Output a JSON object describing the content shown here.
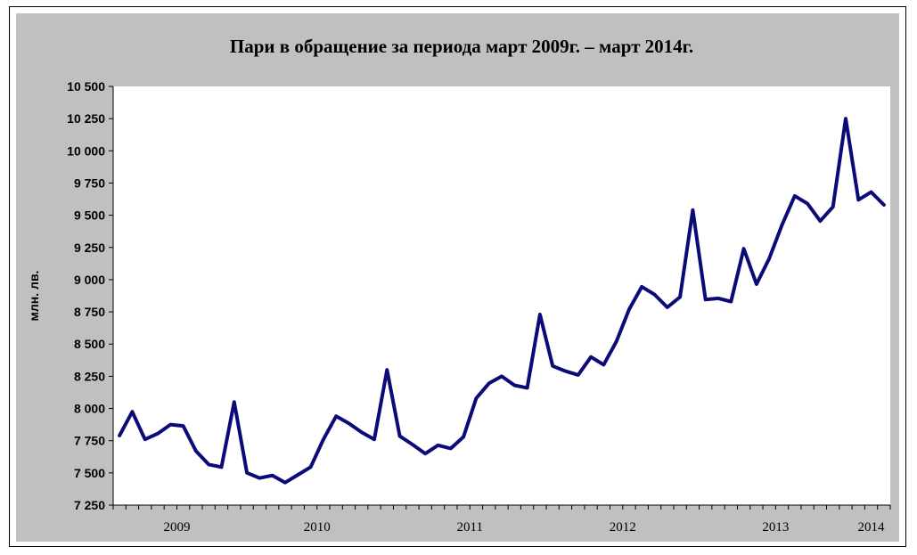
{
  "chart_data": {
    "type": "line",
    "title": "Пари в обращение за периода март 2009г. – март 2014г.",
    "xlabel": "",
    "ylabel": "млн. лв.",
    "ylim": [
      7250,
      10500
    ],
    "yticks": [
      7250,
      7500,
      7750,
      8000,
      8250,
      8500,
      8750,
      9000,
      9250,
      9500,
      9750,
      10000,
      10250,
      10500
    ],
    "ytick_labels": [
      "7 250",
      "7 500",
      "7 750",
      "8 000",
      "8 250",
      "8 500",
      "8 750",
      "9 000",
      "9 250",
      "9 500",
      "9 750",
      "10 000",
      "10 250",
      "10 500"
    ],
    "x_start": "2009-03",
    "year_labels": [
      "2009",
      "2010",
      "2011",
      "2012",
      "2013",
      "2014"
    ],
    "grid": false,
    "legend": "none",
    "line_color": "#0a0a78",
    "plot_bg": "#ffffff",
    "frame_bg": "#c0c0c0",
    "series": [
      {
        "values": [
          7790,
          7975,
          7760,
          7805,
          7875,
          7865,
          7670,
          7565,
          7545,
          8050,
          7500,
          7460,
          7480,
          7425,
          7485,
          7545,
          7760,
          7940,
          7885,
          7815,
          7760,
          8300,
          7785,
          7720,
          7650,
          7715,
          7690,
          7780,
          8080,
          8195,
          8250,
          8180,
          8160,
          8730,
          8330,
          8290,
          8260,
          8400,
          8340,
          8520,
          8770,
          8945,
          8885,
          8785,
          8865,
          9540,
          8845,
          8855,
          8830,
          9240,
          8965,
          9165,
          9425,
          9650,
          9590,
          9455,
          9565,
          10250,
          9620,
          9680,
          9580
        ]
      }
    ]
  }
}
